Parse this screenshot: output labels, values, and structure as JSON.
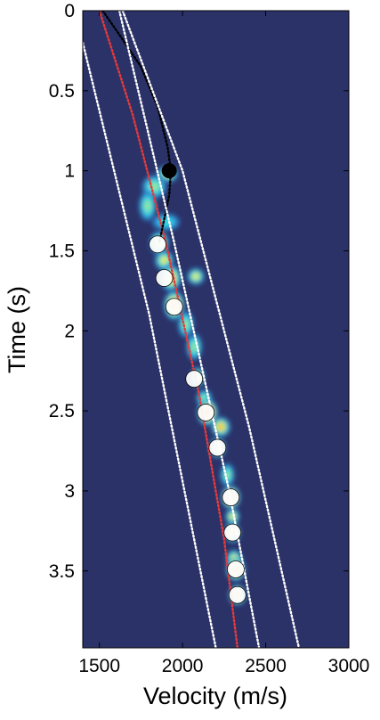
{
  "chart_data": {
    "type": "heatmap",
    "title": "",
    "xlabel": "Velocity (m/s)",
    "ylabel": "Time (s)",
    "xlim": [
      1400,
      3000
    ],
    "ylim": [
      3.98,
      0
    ],
    "x_ticks": [
      1500,
      2000,
      2500,
      3000
    ],
    "x_tick_labels": [
      "1500",
      "2000",
      "2500",
      "3000"
    ],
    "y_ticks": [
      0,
      0.5,
      1,
      1.5,
      2,
      2.5,
      3,
      3.5
    ],
    "y_tick_labels": [
      "0",
      "0.5",
      "1",
      "1.5",
      "2",
      "2.5",
      "3",
      "3.5"
    ],
    "background_color": "#2b3268",
    "colormap": [
      "#2b3268",
      "#2f8fd8",
      "#36d6e6",
      "#8fe89a",
      "#f5ef2a",
      "#f7a21b",
      "#e0201b",
      "#8a0c0c"
    ],
    "grid": false,
    "semblance_blobs": [
      {
        "t": 1.02,
        "v": 1910,
        "dv": 60,
        "dt": 0.05,
        "level": 0.55
      },
      {
        "t": 1.1,
        "v": 1830,
        "dv": 70,
        "dt": 0.07,
        "level": 0.45
      },
      {
        "t": 1.22,
        "v": 1790,
        "dv": 50,
        "dt": 0.09,
        "level": 0.4
      },
      {
        "t": 1.32,
        "v": 1900,
        "dv": 80,
        "dt": 0.05,
        "level": 0.3
      },
      {
        "t": 1.45,
        "v": 1860,
        "dv": 55,
        "dt": 0.07,
        "level": 0.6
      },
      {
        "t": 1.56,
        "v": 1890,
        "dv": 55,
        "dt": 0.06,
        "level": 0.55
      },
      {
        "t": 1.67,
        "v": 1930,
        "dv": 60,
        "dt": 0.08,
        "level": 0.75
      },
      {
        "t": 1.66,
        "v": 2080,
        "dv": 50,
        "dt": 0.05,
        "level": 0.5
      },
      {
        "t": 1.84,
        "v": 1950,
        "dv": 60,
        "dt": 0.09,
        "level": 0.85
      },
      {
        "t": 1.96,
        "v": 2020,
        "dv": 45,
        "dt": 0.08,
        "level": 0.45
      },
      {
        "t": 2.1,
        "v": 2070,
        "dv": 45,
        "dt": 0.08,
        "level": 0.4
      },
      {
        "t": 2.29,
        "v": 2090,
        "dv": 40,
        "dt": 0.06,
        "level": 0.5
      },
      {
        "t": 2.42,
        "v": 2130,
        "dv": 45,
        "dt": 0.05,
        "level": 0.45
      },
      {
        "t": 2.51,
        "v": 2150,
        "dv": 60,
        "dt": 0.08,
        "level": 0.98
      },
      {
        "t": 2.6,
        "v": 2230,
        "dv": 55,
        "dt": 0.06,
        "level": 0.7
      },
      {
        "t": 2.73,
        "v": 2210,
        "dv": 45,
        "dt": 0.06,
        "level": 0.75
      },
      {
        "t": 2.9,
        "v": 2270,
        "dv": 40,
        "dt": 0.07,
        "level": 0.45
      },
      {
        "t": 3.04,
        "v": 2290,
        "dv": 55,
        "dt": 0.07,
        "level": 0.97
      },
      {
        "t": 3.16,
        "v": 2300,
        "dv": 40,
        "dt": 0.05,
        "level": 0.55
      },
      {
        "t": 3.26,
        "v": 2300,
        "dv": 45,
        "dt": 0.06,
        "level": 0.7
      },
      {
        "t": 3.42,
        "v": 2310,
        "dv": 45,
        "dt": 0.05,
        "level": 0.6
      },
      {
        "t": 3.49,
        "v": 2320,
        "dv": 55,
        "dt": 0.07,
        "level": 0.92
      },
      {
        "t": 3.65,
        "v": 2330,
        "dv": 50,
        "dt": 0.06,
        "level": 0.8
      }
    ],
    "series": [
      {
        "style": "dotted",
        "color": "#e63a3a",
        "x": [
          1500,
          1700,
          1900,
          2100,
          2250,
          2330
        ],
        "y": [
          0,
          0.65,
          1.45,
          2.4,
          3.3,
          3.98
        ]
      },
      {
        "style": "dotted",
        "color": "#000000",
        "x": [
          1520,
          1620,
          1750,
          1850,
          1910,
          1930,
          1920,
          1860
        ],
        "y": [
          0,
          0.15,
          0.35,
          0.6,
          0.85,
          1.0,
          1.15,
          1.45
        ]
      },
      {
        "style": "dotted",
        "color": "#ffffff",
        "x": [
          1400,
          1800,
          2200
        ],
        "y": [
          0.2,
          1.9,
          3.98
        ]
      },
      {
        "style": "dotted",
        "color": "#ffffff",
        "x": [
          1620,
          1950,
          2280,
          2460
        ],
        "y": [
          0,
          1.45,
          3.0,
          3.98
        ]
      },
      {
        "style": "dotted",
        "color": "#ffffff",
        "x": [
          1640,
          2000,
          2400,
          2700
        ],
        "y": [
          0,
          1.0,
          2.6,
          3.98
        ]
      }
    ],
    "picks": [
      {
        "v": 1920,
        "t": 1.0,
        "marker": "filled-black"
      },
      {
        "v": 1850,
        "t": 1.46,
        "marker": "white"
      },
      {
        "v": 1890,
        "t": 1.67,
        "marker": "white"
      },
      {
        "v": 1950,
        "t": 1.85,
        "marker": "white"
      },
      {
        "v": 2070,
        "t": 2.3,
        "marker": "white"
      },
      {
        "v": 2140,
        "t": 2.51,
        "marker": "white"
      },
      {
        "v": 2210,
        "t": 2.73,
        "marker": "white"
      },
      {
        "v": 2290,
        "t": 3.04,
        "marker": "white"
      },
      {
        "v": 2300,
        "t": 3.26,
        "marker": "white"
      },
      {
        "v": 2320,
        "t": 3.49,
        "marker": "white"
      },
      {
        "v": 2330,
        "t": 3.65,
        "marker": "white"
      }
    ]
  }
}
